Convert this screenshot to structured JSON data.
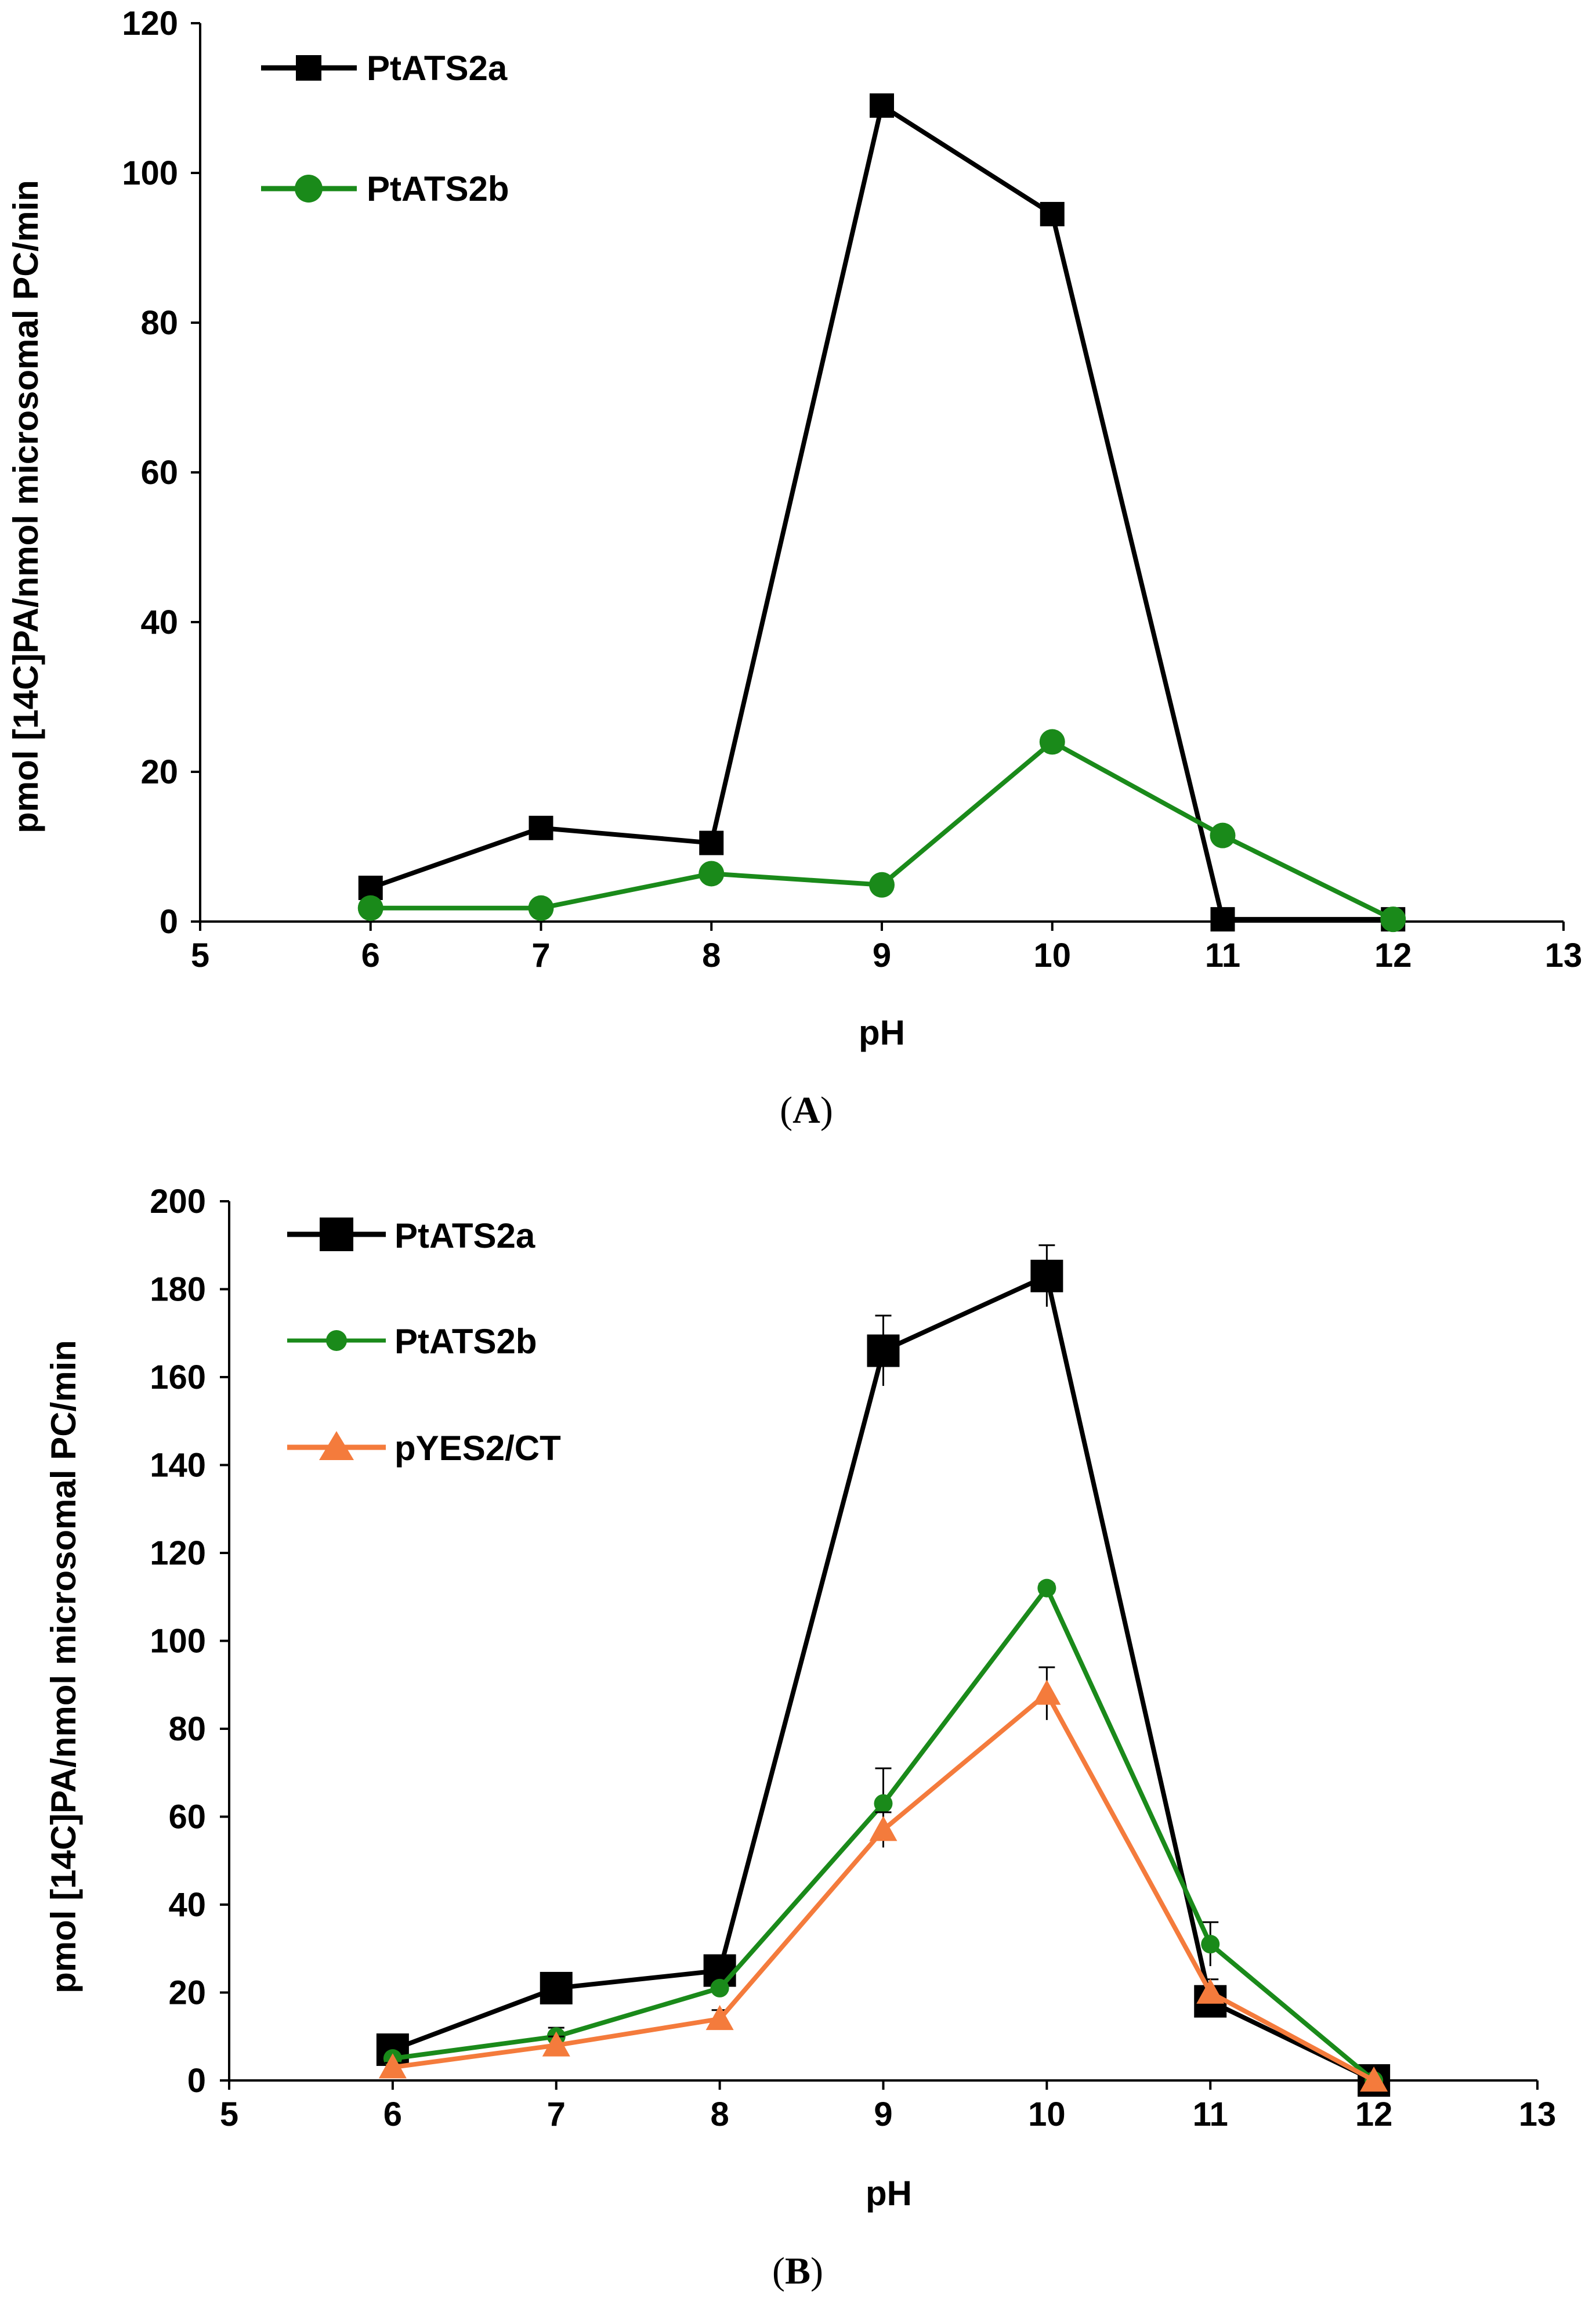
{
  "chart_data": [
    {
      "type": "line",
      "panel_label": "A",
      "xlabel": "pH",
      "ylabel": "pmol [14C]PA/nmol microsomal PC/min",
      "xlim": [
        5,
        13
      ],
      "ylim": [
        0,
        120
      ],
      "xticks": [
        5,
        6,
        7,
        8,
        9,
        10,
        11,
        12,
        13
      ],
      "yticks": [
        0,
        20,
        40,
        60,
        80,
        100,
        120
      ],
      "legend_position": "top-left",
      "series": [
        {
          "name": "PtATS2a",
          "color": "#000000",
          "marker": "square",
          "x": [
            6,
            7,
            8,
            9,
            10,
            11,
            12
          ],
          "y": [
            4.5,
            12.5,
            10.5,
            109,
            94.5,
            0.3,
            0.3
          ]
        },
        {
          "name": "PtATS2b",
          "color": "#1a8a1a",
          "marker": "circle",
          "x": [
            6,
            7,
            8,
            9,
            10,
            11,
            12
          ],
          "y": [
            1.8,
            1.8,
            6.4,
            4.9,
            24,
            11.5,
            0.3
          ]
        }
      ]
    },
    {
      "type": "line",
      "panel_label": "B",
      "xlabel": "pH",
      "ylabel": "pmol [14C]PA/nmol microsomal PC/min",
      "xlim": [
        5,
        13
      ],
      "ylim": [
        0,
        200
      ],
      "xticks": [
        5,
        6,
        7,
        8,
        9,
        10,
        11,
        12,
        13
      ],
      "yticks": [
        0,
        20,
        40,
        60,
        80,
        100,
        120,
        140,
        160,
        180,
        200
      ],
      "legend_position": "top-left",
      "series": [
        {
          "name": "PtATS2a",
          "color": "#000000",
          "marker": "square",
          "x": [
            6,
            7,
            8,
            9,
            10,
            11,
            12
          ],
          "y": [
            7,
            21,
            25,
            166,
            183,
            18,
            0
          ],
          "error": [
            2,
            3,
            3,
            8,
            7,
            3,
            0
          ]
        },
        {
          "name": "PtATS2b",
          "color": "#1a8a1a",
          "marker": "circle",
          "x": [
            6,
            7,
            8,
            9,
            10,
            11,
            12
          ],
          "y": [
            5,
            10,
            21,
            63,
            112,
            31,
            0
          ],
          "error": [
            1,
            2,
            2,
            8,
            1,
            5,
            0
          ]
        },
        {
          "name": "pYES2/CT",
          "color": "#f47b3c",
          "marker": "triangle",
          "x": [
            6,
            7,
            8,
            9,
            10,
            11,
            12
          ],
          "y": [
            3,
            8,
            14,
            57,
            88,
            20,
            0
          ],
          "error": [
            1,
            2,
            2,
            4,
            6,
            3,
            0
          ]
        }
      ]
    }
  ]
}
